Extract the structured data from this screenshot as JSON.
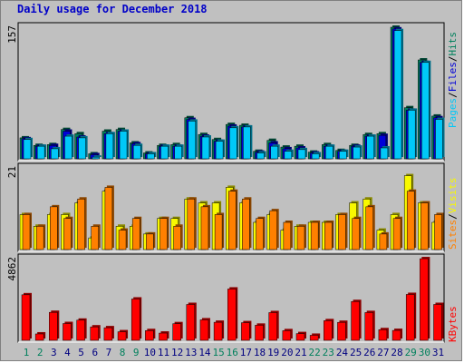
{
  "title": "Daily usage for December 2018",
  "colors": {
    "hits": "#00805c",
    "files": "#0000d8",
    "pages": "#00c8f8",
    "visits": "#f8f800",
    "sites": "#ff8000",
    "kbytes": "#ff0000",
    "title": "#0000c8",
    "weekend_label": "#00805c",
    "weekday_label": "#000080"
  },
  "legend": {
    "top": [
      "Pages",
      "Files",
      "Hits"
    ],
    "top_sep": "/",
    "middle": [
      "Sites",
      "Visits"
    ],
    "middle_sep": "/",
    "bottom": [
      "KBytes"
    ]
  },
  "chart_data": [
    {
      "type": "bar",
      "name": "hits-files-pages",
      "ymax_label": "157",
      "ylim": [
        0,
        157
      ],
      "categories": [
        "1",
        "2",
        "3",
        "4",
        "5",
        "6",
        "7",
        "8",
        "9",
        "10",
        "11",
        "12",
        "13",
        "14",
        "15",
        "16",
        "17",
        "18",
        "19",
        "20",
        "21",
        "22",
        "23",
        "24",
        "25",
        "26",
        "27",
        "28",
        "29",
        "30",
        "31"
      ],
      "weekend_days": [
        "1",
        "2",
        "8",
        "9",
        "15",
        "16",
        "22",
        "23",
        "29",
        "30"
      ],
      "series": [
        {
          "name": "Hits",
          "values": [
            25,
            16,
            17,
            35,
            30,
            6,
            33,
            35,
            19,
            7,
            16,
            17,
            49,
            29,
            23,
            41,
            40,
            9,
            22,
            14,
            15,
            8,
            17,
            10,
            16,
            29,
            30,
            157,
            61,
            118,
            51
          ]
        },
        {
          "name": "Files",
          "values": [
            24,
            15,
            16,
            33,
            26,
            5,
            30,
            33,
            18,
            6,
            15,
            15,
            47,
            27,
            21,
            39,
            38,
            8,
            19,
            12,
            13,
            7,
            15,
            9,
            15,
            27,
            28,
            155,
            58,
            115,
            49
          ]
        },
        {
          "name": "Pages",
          "values": [
            23,
            15,
            12,
            27,
            25,
            2,
            30,
            33,
            16,
            6,
            15,
            15,
            45,
            26,
            21,
            37,
            38,
            7,
            15,
            9,
            11,
            6,
            15,
            9,
            14,
            27,
            13,
            153,
            58,
            115,
            47
          ]
        }
      ]
    },
    {
      "type": "bar",
      "name": "visits-sites",
      "ymax_label": "21",
      "ylim": [
        0,
        21
      ],
      "categories": [
        "1",
        "2",
        "3",
        "4",
        "5",
        "6",
        "7",
        "8",
        "9",
        "10",
        "11",
        "12",
        "13",
        "14",
        "15",
        "16",
        "17",
        "18",
        "19",
        "20",
        "21",
        "22",
        "23",
        "24",
        "25",
        "26",
        "27",
        "28",
        "29",
        "30",
        "31"
      ],
      "series": [
        {
          "name": "Visits",
          "values": [
            9,
            6,
            9,
            9,
            12,
            3,
            15,
            6,
            6,
            4,
            8,
            8,
            13,
            12,
            12,
            16,
            12,
            7,
            9,
            5,
            6,
            7,
            7,
            9,
            12,
            13,
            5,
            9,
            19,
            12,
            7
          ]
        },
        {
          "name": "Sites",
          "values": [
            9,
            6,
            11,
            8,
            13,
            6,
            16,
            5,
            8,
            4,
            8,
            6,
            13,
            11,
            9,
            15,
            13,
            8,
            10,
            7,
            6,
            7,
            7,
            9,
            8,
            11,
            4,
            8,
            15,
            12,
            9
          ]
        }
      ]
    },
    {
      "type": "bar",
      "name": "kbytes",
      "ymax_label": "4862",
      "ylim": [
        0,
        4862
      ],
      "categories": [
        "1",
        "2",
        "3",
        "4",
        "5",
        "6",
        "7",
        "8",
        "9",
        "10",
        "11",
        "12",
        "13",
        "14",
        "15",
        "16",
        "17",
        "18",
        "19",
        "20",
        "21",
        "22",
        "23",
        "24",
        "25",
        "26",
        "27",
        "28",
        "29",
        "30",
        "31"
      ],
      "series": [
        {
          "name": "KBytes",
          "values": [
            2710,
            380,
            1665,
            1000,
            1200,
            800,
            750,
            510,
            2460,
            580,
            430,
            990,
            2135,
            1220,
            1075,
            3055,
            1050,
            900,
            1650,
            575,
            400,
            300,
            1170,
            1070,
            2310,
            1655,
            635,
            590,
            2730,
            4860,
            2135
          ]
        }
      ]
    }
  ]
}
